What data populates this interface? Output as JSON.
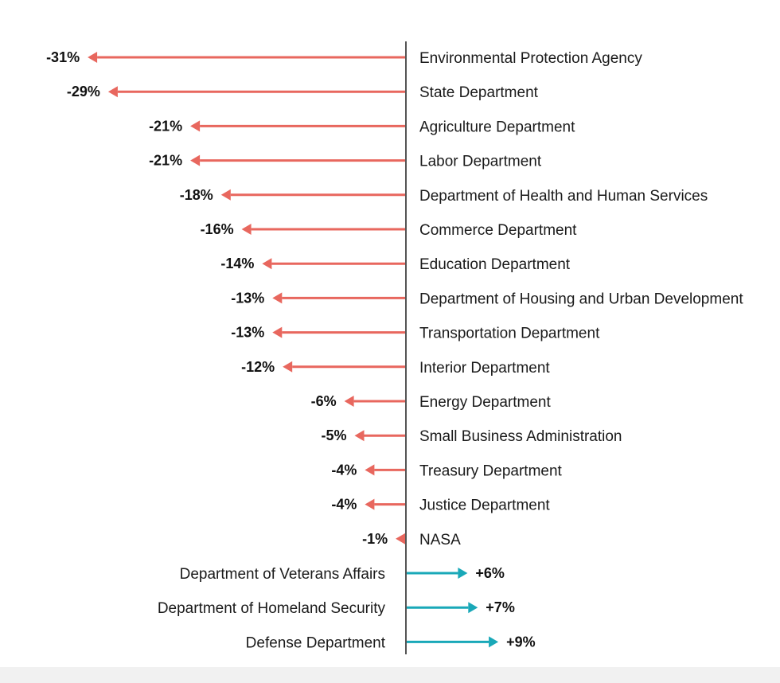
{
  "chart_data": {
    "type": "bar",
    "subtype": "diverging-arrow",
    "unit": "%",
    "categories": [
      "Environmental Protection Agency",
      "State Department",
      "Agriculture Department",
      "Labor Department",
      "Department of Health and Human Services",
      "Commerce Department",
      "Education Department",
      "Department of Housing and Urban Development",
      "Transportation Department",
      "Interior Department",
      "Energy Department",
      "Small Business Administration",
      "Treasury Department",
      "Justice Department",
      "NASA",
      "Department of Veterans Affairs",
      "Department of Homeland Security",
      "Defense Department"
    ],
    "values": [
      -31,
      -29,
      -21,
      -21,
      -18,
      -16,
      -14,
      -13,
      -13,
      -12,
      -6,
      -5,
      -4,
      -4,
      -1,
      6,
      7,
      9
    ],
    "value_labels": [
      "-31%",
      "-29%",
      "-21%",
      "-21%",
      "-18%",
      "-16%",
      "-14%",
      "-13%",
      "-13%",
      "-12%",
      "-6%",
      "-5%",
      "-4%",
      "-4%",
      "-1%",
      "+6%",
      "+7%",
      "+9%"
    ],
    "colors": {
      "negative": "#e8675e",
      "positive": "#19a8b8",
      "axis": "#555555"
    },
    "grid": false,
    "title": "",
    "xlabel": "",
    "ylabel": ""
  }
}
